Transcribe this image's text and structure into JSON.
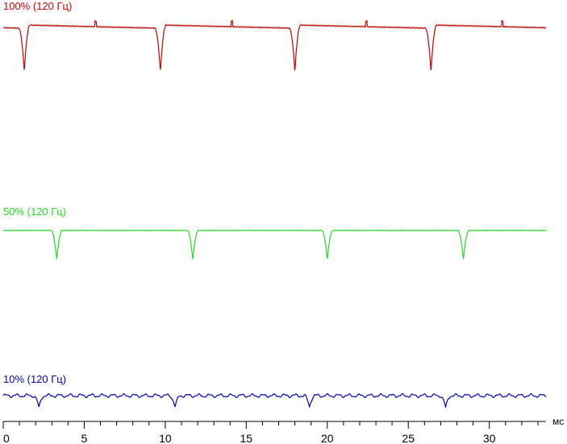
{
  "chart_data": {
    "type": "line",
    "x_unit": "мс",
    "xlim": [
      0,
      33.5
    ],
    "x_ticks": [
      0,
      5,
      10,
      15,
      20,
      25,
      30
    ],
    "x_minor_step": 1,
    "grid": false,
    "series": [
      {
        "name": "100% (120 Гц)",
        "color": "#cc0000",
        "baseline_start": 1.0,
        "baseline_end": 0.93,
        "dip_bottom": 0.0,
        "dip_times": [
          1.3,
          9.7,
          18.0,
          26.4
        ],
        "dip_width": 0.35,
        "spike_times": [
          5.7,
          14.1,
          22.4,
          30.8
        ]
      },
      {
        "name": "50% (120 Гц)",
        "color": "#22dd22",
        "baseline": 1.0,
        "dip_bottom": 0.0,
        "dip_times": [
          3.3,
          11.7,
          20.0,
          28.4
        ],
        "dip_width": 0.35
      },
      {
        "name": "10% (120 Гц)",
        "color": "#0000bb",
        "baseline": 1.0,
        "dip_bottom": 0.0,
        "dip_times": [
          2.2,
          10.6,
          18.9,
          27.3
        ],
        "dip_width": 0.35,
        "ripple": true
      }
    ]
  }
}
